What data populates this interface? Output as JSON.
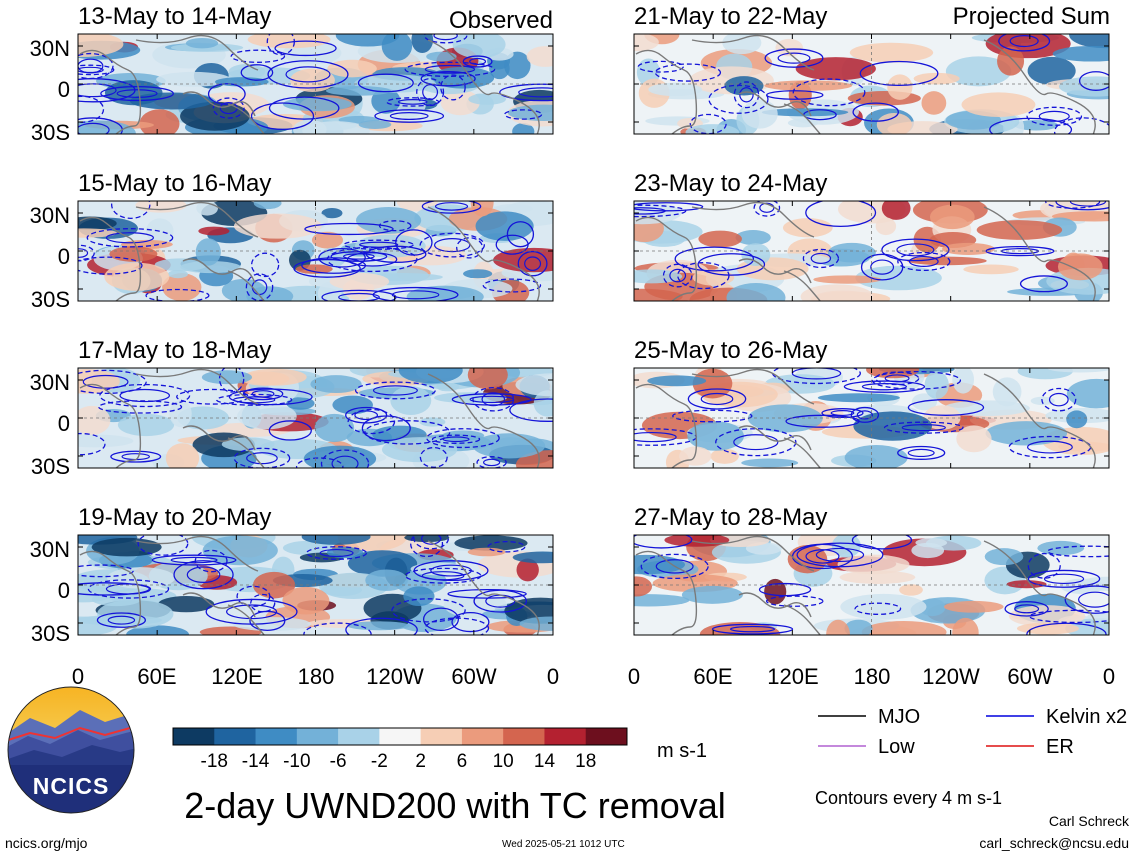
{
  "panels": {
    "observed_label": "Observed",
    "projected_label": "Projected Sum",
    "left_titles": [
      "13-May to 14-May",
      "15-May to 16-May",
      "17-May to 18-May",
      "19-May to 20-May"
    ],
    "right_titles": [
      "21-May to 22-May",
      "23-May to 24-May",
      "25-May to 26-May",
      "27-May to 28-May"
    ],
    "lat_ticks": [
      "30N",
      "0",
      "30S"
    ],
    "lon_ticks": [
      "0",
      "60E",
      "120E",
      "180",
      "120W",
      "60W",
      "0"
    ]
  },
  "colorbar": {
    "tick_labels": [
      "-18",
      "-14",
      "-10",
      "-6",
      "-2",
      "2",
      "6",
      "10",
      "14",
      "18"
    ],
    "colors": [
      "#0d3a62",
      "#1f64a0",
      "#3f8cc4",
      "#73b1d8",
      "#a9d2e8",
      "#f6f6f6",
      "#f6ceb5",
      "#eb9b7d",
      "#d4654f",
      "#b42130",
      "#6d0f1e"
    ],
    "units": "m s-1"
  },
  "legend": {
    "items": [
      {
        "label": "MJO",
        "color": "#000000"
      },
      {
        "label": "Kelvin x2",
        "color": "#0000dd"
      },
      {
        "label": "Low",
        "color": "#b160d0"
      },
      {
        "label": "ER",
        "color": "#dd1111"
      }
    ],
    "contours_note": "Contours every 4 m s-1"
  },
  "logo": {
    "text": "NCICS"
  },
  "title": "2-day UWND200 with TC removal",
  "footer": {
    "url": "ncics.org/mjo",
    "timestamp": "Wed 2025-05-21 1012 UTC",
    "author": "Carl Schreck",
    "email": "carl_schreck@ncsu.edu"
  },
  "chart_data": {
    "type": "heatmap",
    "variable": "2-day UWND200 with TC removal",
    "units": "m s-1",
    "x_axis": {
      "ticks": [
        "0",
        "60E",
        "120E",
        "180",
        "120W",
        "60W",
        "0"
      ],
      "range_deg": [
        0,
        360
      ]
    },
    "y_axis": {
      "ticks": [
        "30N",
        "0",
        "30S"
      ],
      "range_deg": [
        -40,
        40
      ]
    },
    "color_levels": [
      -18,
      -14,
      -10,
      -6,
      -2,
      2,
      6,
      10,
      14,
      18
    ],
    "contour_interval": 4,
    "panels": [
      {
        "period": "13-May to 14-May",
        "column": "Observed"
      },
      {
        "period": "15-May to 16-May",
        "column": "Observed"
      },
      {
        "period": "17-May to 18-May",
        "column": "Observed"
      },
      {
        "period": "19-May to 20-May",
        "column": "Observed"
      },
      {
        "period": "21-May to 22-May",
        "column": "Projected Sum"
      },
      {
        "period": "23-May to 24-May",
        "column": "Projected Sum"
      },
      {
        "period": "25-May to 26-May",
        "column": "Projected Sum"
      },
      {
        "period": "27-May to 28-May",
        "column": "Projected Sum"
      }
    ]
  }
}
